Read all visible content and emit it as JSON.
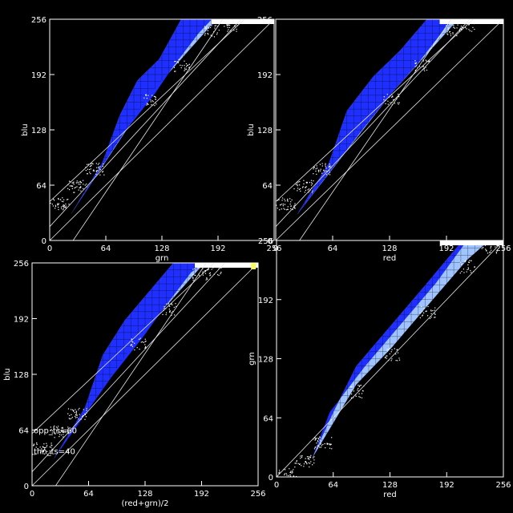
{
  "colors": {
    "background": "#000000",
    "axes": "#ffffff",
    "density_high": "#1f2fff",
    "density_mid": "#9fc4ff",
    "density_low": "#ffffff",
    "saturation_highlight": "#ffff40"
  },
  "chart_data": [
    {
      "id": "blu-vs-grn",
      "type": "heatmap",
      "xlabel": "grn",
      "ylabel": "blu",
      "xlim": [
        0,
        256
      ],
      "ylim": [
        0,
        256
      ],
      "xticks": [
        "0",
        "64",
        "128",
        "192",
        "256"
      ],
      "yticks": [
        "0",
        "64",
        "128",
        "192",
        "256"
      ],
      "reference_lines": [
        {
          "slope": 1,
          "intercept": 0
        },
        {
          "slope": 0.95,
          "intercept": 45
        },
        {
          "slope": 1.1,
          "intercept": 16
        },
        {
          "slope": 1.5,
          "intercept": -40
        }
      ],
      "density": {
        "upper_edge": [
          [
            24,
            30
          ],
          [
            60,
            90
          ],
          [
            80,
            145
          ],
          [
            100,
            185
          ],
          [
            125,
            210
          ],
          [
            150,
            256
          ]
        ],
        "blue_lower_edge": [
          [
            85,
            125
          ],
          [
            120,
            170
          ],
          [
            140,
            200
          ],
          [
            170,
            240
          ],
          [
            185,
            256
          ]
        ],
        "cyan_lower_edge": [
          [
            115,
            170
          ],
          [
            150,
            210
          ],
          [
            185,
            250
          ],
          [
            205,
            256
          ]
        ],
        "scatter_cluster": [
          [
            0,
            40
          ],
          [
            20,
            60
          ],
          [
            40,
            80
          ]
        ],
        "saturation_y": 256
      },
      "annotations": []
    },
    {
      "id": "blu-vs-red",
      "type": "heatmap",
      "xlabel": "red",
      "ylabel": "blu",
      "xlim": [
        0,
        256
      ],
      "ylim": [
        0,
        256
      ],
      "xticks": [
        "0",
        "64",
        "128",
        "192",
        "256"
      ],
      "yticks": [
        "0",
        "64",
        "128",
        "192",
        "256"
      ],
      "reference_lines": [
        {
          "slope": 1,
          "intercept": 0
        },
        {
          "slope": 0.95,
          "intercept": 45
        },
        {
          "slope": 1.1,
          "intercept": 16
        },
        {
          "slope": 1.5,
          "intercept": -40
        }
      ],
      "density": {
        "upper_edge": [
          [
            24,
            30
          ],
          [
            60,
            90
          ],
          [
            80,
            150
          ],
          [
            110,
            190
          ],
          [
            140,
            220
          ],
          [
            170,
            256
          ]
        ],
        "blue_lower_edge": [
          [
            95,
            125
          ],
          [
            130,
            170
          ],
          [
            160,
            205
          ],
          [
            190,
            245
          ],
          [
            200,
            256
          ]
        ],
        "cyan_lower_edge": [
          [
            130,
            170
          ],
          [
            165,
            210
          ],
          [
            200,
            250
          ],
          [
            215,
            256
          ]
        ],
        "scatter_cluster": [
          [
            0,
            40
          ],
          [
            20,
            60
          ],
          [
            40,
            80
          ]
        ],
        "saturation_y": 256
      },
      "annotations": []
    },
    {
      "id": "blu-vs-avg",
      "type": "heatmap",
      "xlabel": "(red+grn)/2",
      "ylabel": "blu",
      "xlim": [
        0,
        256
      ],
      "ylim": [
        0,
        256
      ],
      "xticks": [
        "0",
        "64",
        "128",
        "192",
        "256"
      ],
      "yticks": [
        "0",
        "64",
        "128",
        "192",
        "256"
      ],
      "reference_lines": [
        {
          "slope": 1,
          "intercept": 0
        },
        {
          "slope": 0.95,
          "intercept": 60
        },
        {
          "slope": 1.1,
          "intercept": 16
        },
        {
          "slope": 1.5,
          "intercept": -40
        }
      ],
      "density": {
        "upper_edge": [
          [
            24,
            30
          ],
          [
            60,
            90
          ],
          [
            80,
            150
          ],
          [
            105,
            190
          ],
          [
            130,
            220
          ],
          [
            160,
            256
          ]
        ],
        "blue_lower_edge": [
          [
            90,
            125
          ],
          [
            125,
            170
          ],
          [
            150,
            205
          ],
          [
            180,
            245
          ],
          [
            195,
            256
          ]
        ],
        "cyan_lower_edge": [
          [
            120,
            170
          ],
          [
            155,
            210
          ],
          [
            190,
            250
          ],
          [
            205,
            256
          ]
        ],
        "scatter_cluster": [
          [
            0,
            40
          ],
          [
            20,
            60
          ],
          [
            40,
            80
          ]
        ],
        "saturation_y": 256
      },
      "annotations": [
        "opp_ts=60",
        "thn_ts=40"
      ]
    },
    {
      "id": "grn-vs-red",
      "type": "heatmap",
      "xlabel": "red",
      "ylabel": "grn",
      "xlim": [
        0,
        256
      ],
      "ylim": [
        0,
        256
      ],
      "xticks": [
        "0",
        "64",
        "128",
        "192",
        "256"
      ],
      "yticks": [
        "0",
        "64",
        "128",
        "192",
        "256"
      ],
      "reference_lines": [
        {
          "slope": 1,
          "intercept": 0
        }
      ],
      "density": {
        "upper_edge": [
          [
            40,
            20
          ],
          [
            64,
            70
          ],
          [
            90,
            120
          ],
          [
            130,
            165
          ],
          [
            170,
            210
          ],
          [
            210,
            256
          ]
        ],
        "blue_lower_edge": [
          [
            60,
            70
          ],
          [
            100,
            120
          ],
          [
            140,
            165
          ],
          [
            180,
            210
          ],
          [
            215,
            256
          ]
        ],
        "cyan_lower_edge": [
          [
            90,
            100
          ],
          [
            130,
            140
          ],
          [
            170,
            185
          ],
          [
            215,
            235
          ],
          [
            240,
            256
          ]
        ],
        "scatter_cluster": [
          [
            0,
            0
          ],
          [
            20,
            15
          ],
          [
            40,
            35
          ]
        ],
        "saturation_y": 256
      },
      "annotations": []
    }
  ]
}
